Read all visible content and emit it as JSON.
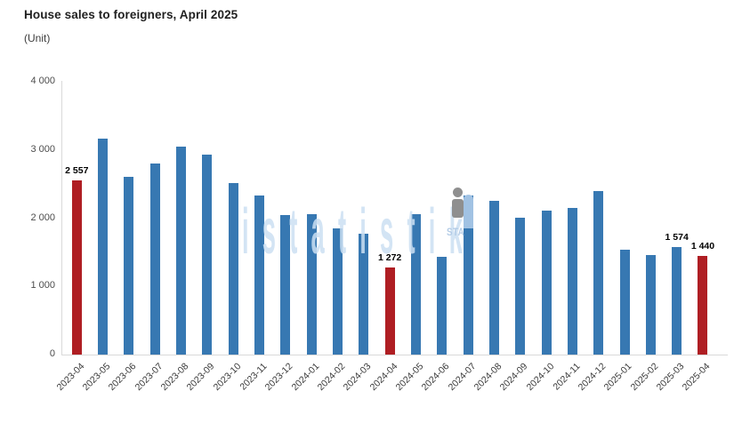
{
  "header": {
    "title": "House sales to foreigners, April 2025",
    "unit_label": "(Unit)"
  },
  "watermark": {
    "big_text": "istatistik",
    "small_text": "STA"
  },
  "chart_data": {
    "type": "bar",
    "title": "House sales to foreigners, April 2025",
    "ylabel": "(Unit)",
    "xlabel": "",
    "ylim": [
      0,
      4000
    ],
    "ytick_values": [
      4000,
      3000,
      2000,
      1000,
      0
    ],
    "ytick_labels": [
      "4 000",
      "3 000",
      "2 000",
      "1 000",
      "0"
    ],
    "grid": false,
    "legend": null,
    "categories": [
      "2023-04",
      "2023-05",
      "2023-06",
      "2023-07",
      "2023-08",
      "2023-09",
      "2023-10",
      "2023-11",
      "2023-12",
      "2024-01",
      "2024-02",
      "2024-03",
      "2024-04",
      "2024-05",
      "2024-06",
      "2024-07",
      "2024-08",
      "2024-09",
      "2024-10",
      "2024-11",
      "2024-12",
      "2025-01",
      "2025-02",
      "2025-03",
      "2025-04"
    ],
    "values": [
      2557,
      3160,
      2610,
      2795,
      3055,
      2935,
      2520,
      2335,
      2050,
      2060,
      1850,
      1770,
      1272,
      2065,
      1430,
      2337,
      2250,
      2000,
      2110,
      2145,
      2400,
      1535,
      1455,
      1574,
      1440
    ],
    "bar_value_labels": {
      "2023-04": "2 557",
      "2024-04": "1 272",
      "2025-03": "1 574",
      "2025-04": "1 440"
    },
    "highlighted_categories": [
      "2023-04",
      "2024-04",
      "2025-04"
    ],
    "colors": {
      "bar_default": "#3778B2",
      "bar_highlight": "#AF1E23",
      "axis_line": "#D9D9D9",
      "value_label_text": "#000000"
    }
  }
}
